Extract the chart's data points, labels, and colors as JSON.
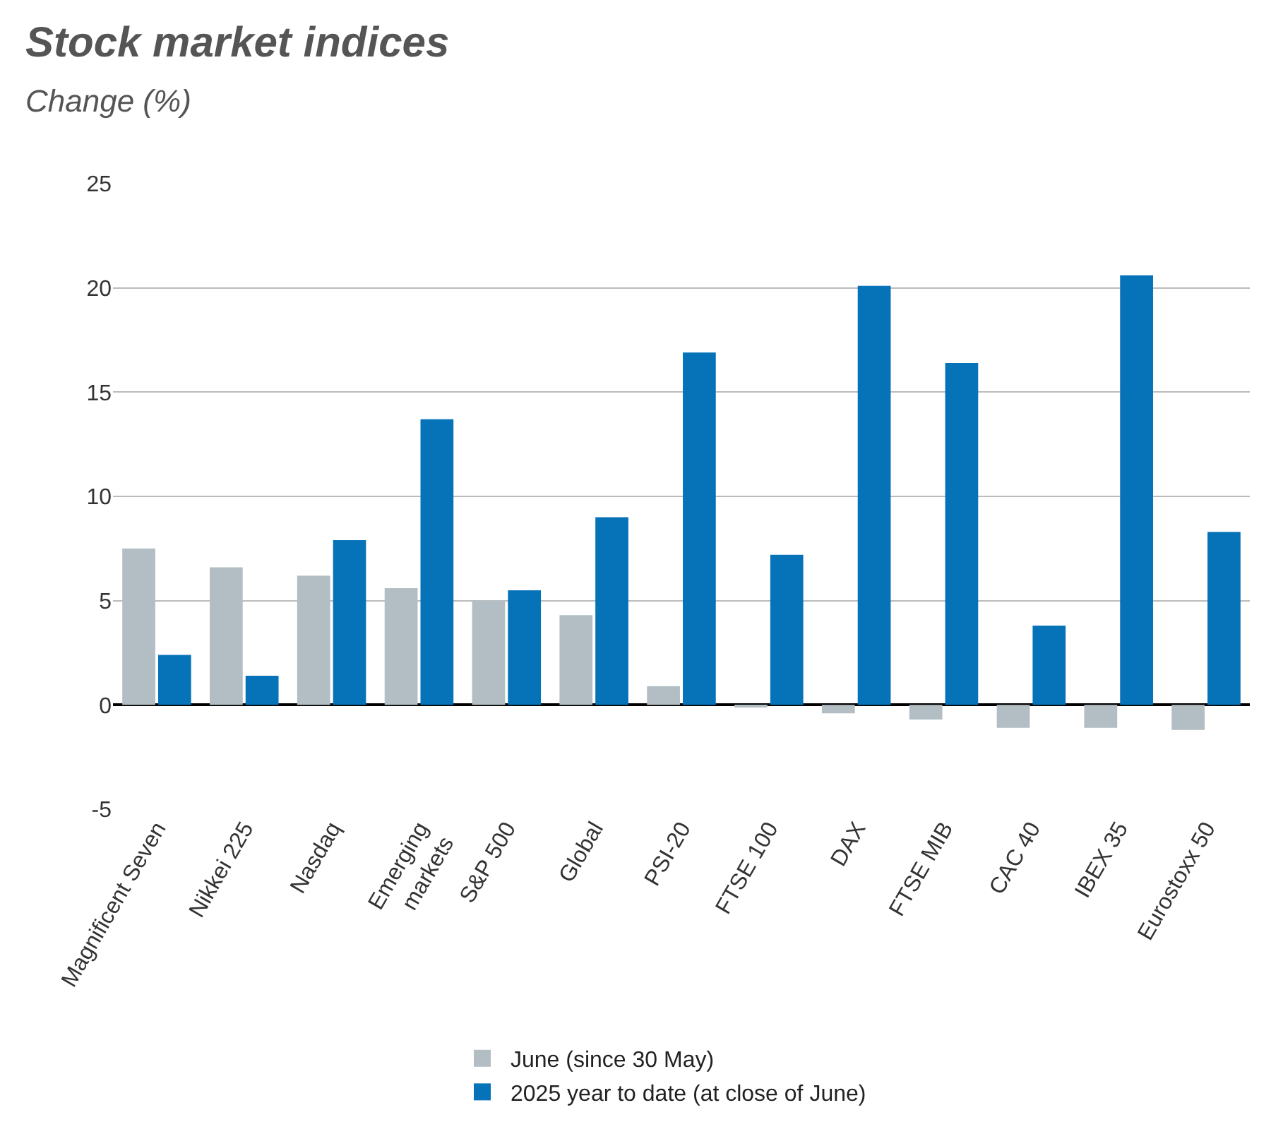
{
  "chart_data": {
    "type": "bar",
    "title": "Stock market indices",
    "subtitle": "Change (%)",
    "categories": [
      "Magnificent Seven",
      "Nikkei 225",
      "Nasdaq",
      "Emerging\nmarkets",
      "S&P 500",
      "Global",
      "PSI-20",
      "FTSE 100",
      "DAX",
      "FTSE MIB",
      "CAC 40",
      "IBEX 35",
      "Eurostoxx 50"
    ],
    "series": [
      {
        "name": "June (since 30 May)",
        "color": "#b2bec3",
        "values": [
          7.5,
          6.6,
          6.2,
          5.6,
          5.0,
          4.3,
          0.9,
          -0.1,
          -0.4,
          -0.7,
          -1.1,
          -1.1,
          -1.2
        ]
      },
      {
        "name": "2025 year to date (at close of June)",
        "color": "#0673b9",
        "values": [
          2.4,
          1.4,
          7.9,
          13.7,
          5.5,
          9.0,
          16.9,
          7.2,
          20.1,
          16.4,
          3.8,
          20.6,
          8.3
        ]
      }
    ],
    "ylim": [
      -5,
      25
    ],
    "yticks": [
      -5,
      0,
      5,
      10,
      15,
      20,
      25
    ],
    "grid": "y",
    "legend": "bottom"
  }
}
